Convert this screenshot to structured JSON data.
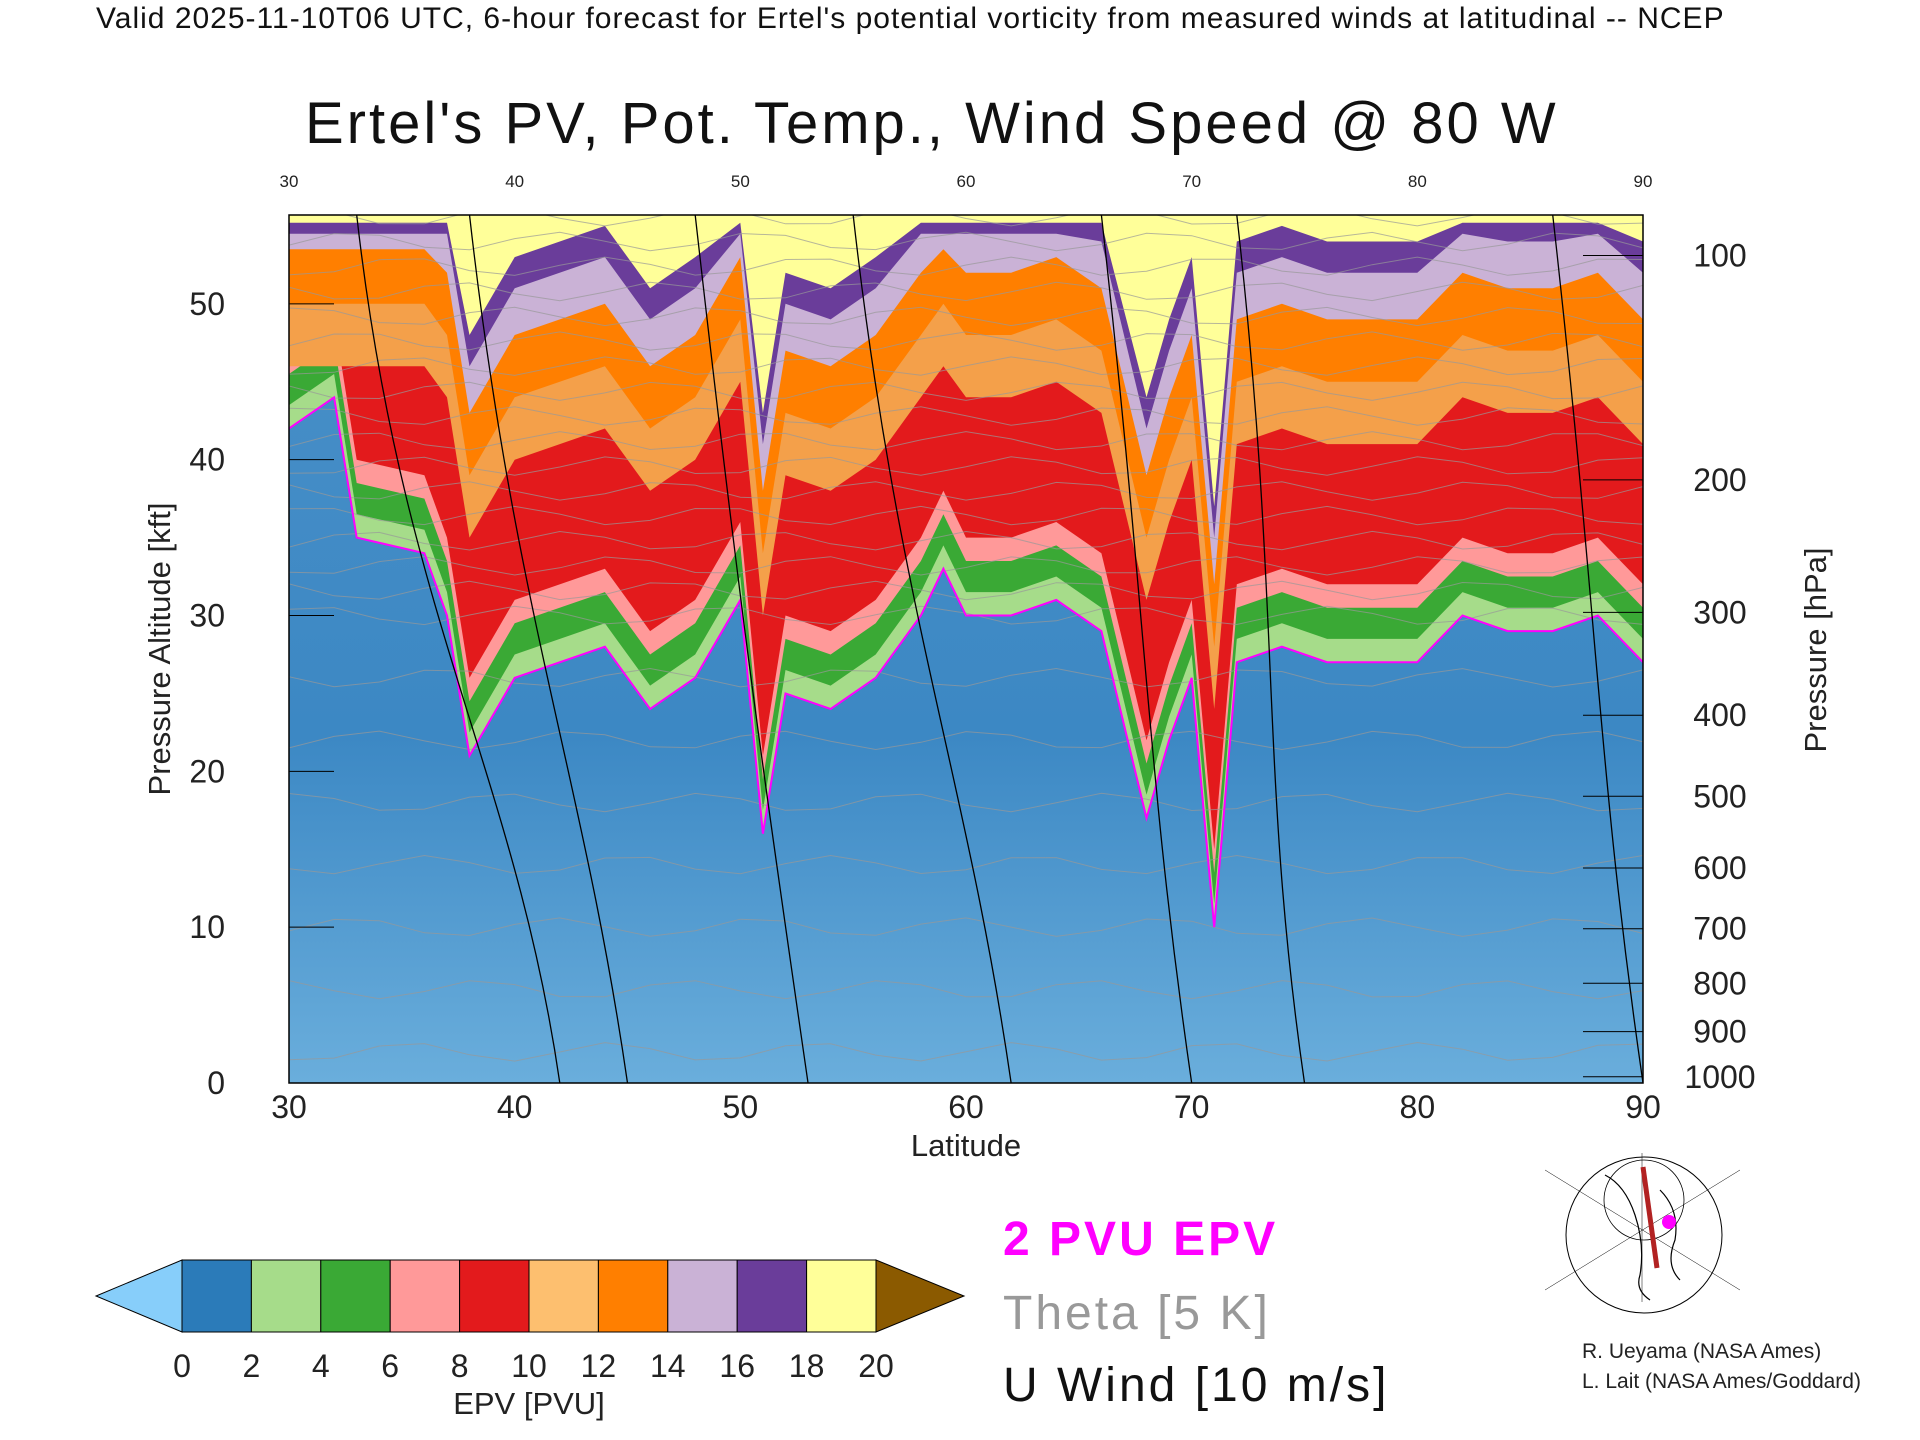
{
  "header": {
    "top_title": "Valid 2025-11-10T06 UTC, 6-hour forecast for Ertel's potential vorticity from measured winds at latitudinal -- NCEP",
    "main_title": "Ertel's PV, Pot. Temp., Wind Speed @ 80 W"
  },
  "chart_data": {
    "type": "heatmap",
    "title": "Ertel's PV, Pot. Temp., Wind Speed @ 80 W",
    "xlabel": "Latitude",
    "ylabel": "Pressure Altitude [kft]",
    "y2label": "Pressure [hPa]",
    "xlim": [
      30,
      90
    ],
    "ylim": [
      0,
      55.7
    ],
    "x_ticks": [
      30,
      40,
      50,
      60,
      70,
      80,
      90
    ],
    "y_ticks": [
      0,
      10,
      20,
      30,
      40,
      50
    ],
    "pressure_ticks": [
      {
        "p": "100",
        "kft": 53.1
      },
      {
        "p": "200",
        "kft": 38.7
      },
      {
        "p": "300",
        "kft": 30.2
      },
      {
        "p": "400",
        "kft": 23.6
      },
      {
        "p": "500",
        "kft": 18.4
      },
      {
        "p": "600",
        "kft": 13.8
      },
      {
        "p": "700",
        "kft": 9.9
      },
      {
        "p": "800",
        "kft": 6.4
      },
      {
        "p": "900",
        "kft": 3.3
      },
      {
        "p": "1000",
        "kft": 0.4
      }
    ],
    "tropopause_2pvu_kft": {
      "lat": [
        30,
        32,
        33,
        36,
        37,
        38,
        40,
        44,
        46,
        48,
        50,
        51,
        52,
        54,
        56,
        58,
        59,
        60,
        62,
        64,
        66,
        68,
        69,
        70,
        71,
        72,
        74,
        76,
        78,
        80,
        82,
        84,
        86,
        88,
        90
      ],
      "kft": [
        42,
        44,
        35,
        34,
        30,
        21,
        26,
        28,
        24,
        26,
        31,
        16,
        25,
        24,
        26,
        30,
        33,
        30,
        30,
        31,
        29,
        17,
        22,
        26,
        10,
        27,
        28,
        27,
        27,
        27,
        30,
        29,
        29,
        30,
        27
      ]
    },
    "colorbar": {
      "label": "EPV [PVU]",
      "ticks": [
        "0",
        "2",
        "4",
        "6",
        "8",
        "10",
        "12",
        "14",
        "16",
        "18",
        "20"
      ],
      "colors": [
        "#87cefa",
        "#2b7bb9",
        "#a6dc8a",
        "#3aa935",
        "#ff9999",
        "#e31a1c",
        "#fdbf6f",
        "#ff7f00",
        "#cab2d6",
        "#6a3d9a",
        "#ffff99",
        "#8b5a00"
      ]
    },
    "legend": {
      "pv": "2 PVU EPV",
      "theta": "Theta [5 K]",
      "wind": "U Wind [10 m/s]"
    },
    "legend_colors": {
      "pv": "#ff00ff",
      "theta": "#999999",
      "wind": "#111111"
    }
  },
  "credits": [
    "R. Ueyama (NASA Ames)",
    "L. Lait (NASA Ames/Goddard)"
  ]
}
